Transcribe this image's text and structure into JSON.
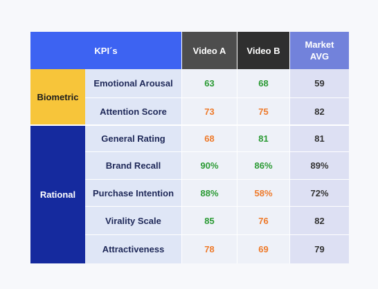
{
  "header": {
    "kpi": "KPI´s",
    "video_a": "Video A",
    "video_b": "Video B",
    "market_line1": "Market",
    "market_line2": "AVG"
  },
  "groups": {
    "biometric": "Biometric",
    "rational": "Rational"
  },
  "rows": [
    {
      "label": "Emotional Arousal",
      "a": "63",
      "b": "68",
      "m": "59"
    },
    {
      "label": "Attention Score",
      "a": "73",
      "b": "75",
      "m": "82"
    },
    {
      "label": "General Rating",
      "a": "68",
      "b": "81",
      "m": "81"
    },
    {
      "label": "Brand Recall",
      "a": "90%",
      "b": "86%",
      "m": "89%"
    },
    {
      "label": "Purchase Intention",
      "a": "88%",
      "b": "58%",
      "m": "72%"
    },
    {
      "label": "Virality Scale",
      "a": "85",
      "b": "76",
      "m": "82"
    },
    {
      "label": "Attractiveness",
      "a": "78",
      "b": "69",
      "m": "79"
    }
  ],
  "colors": {
    "above_market": "#2a9a33",
    "below_market": "#ee7a2a",
    "header_kpi": "#3d63f2",
    "biometric": "#f7c53a",
    "rational": "#152a9e"
  }
}
